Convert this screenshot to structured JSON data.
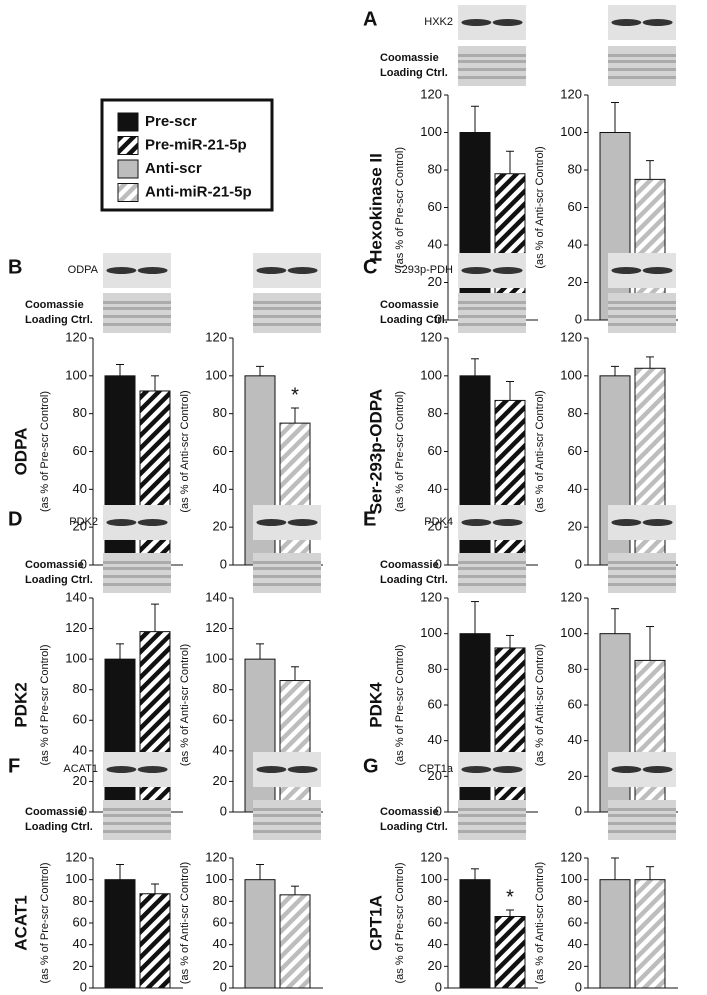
{
  "legend": [
    {
      "name": "Pre-scr",
      "color": "#111111",
      "hatch": false
    },
    {
      "name": "Pre-miR-21-5p",
      "color": "#111111",
      "hatch": true
    },
    {
      "name": "Anti-scr",
      "color": "#bdbdbd",
      "hatch": false
    },
    {
      "name": "Anti-miR-21-5p",
      "color": "#bdbdbd",
      "hatch": true
    }
  ],
  "panels": [
    {
      "letter": "A",
      "title": "Hexokinase II",
      "blot_label": "HXK2",
      "loading_label": [
        "Coomassie",
        "Loading Ctrl."
      ]
    },
    {
      "letter": "B",
      "title": "ODPA",
      "blot_label": "ODPA",
      "loading_label": [
        "Coomassie",
        "Loading Ctrl."
      ]
    },
    {
      "letter": "C",
      "title": "Ser-293p-ODPA",
      "blot_label": "S293p-PDH",
      "loading_label": [
        "Coomassie",
        "Loading Ctrl."
      ]
    },
    {
      "letter": "D",
      "title": "PDK2",
      "blot_label": "PDK2",
      "loading_label": [
        "Coomassie",
        "Loading Ctrl."
      ]
    },
    {
      "letter": "E",
      "title": "PDK4",
      "blot_label": "PDK4",
      "loading_label": [
        "Coomassie",
        "Loading Ctrl."
      ]
    },
    {
      "letter": "F",
      "title": "ACAT1",
      "blot_label": "ACAT1",
      "loading_label": [
        "Coomassie",
        "Loading Ctrl."
      ]
    },
    {
      "letter": "G",
      "title": "CPT1A",
      "blot_label": "CPT1a",
      "loading_label": [
        "Coomassie",
        "Loading Ctrl."
      ]
    }
  ],
  "chart_data": [
    {
      "type": "bar",
      "ylabel": "(as % of Pre-scr Control)",
      "values": [
        100,
        78
      ],
      "errors": [
        14,
        12
      ],
      "colors": [
        "#111111",
        "#111111"
      ],
      "hatch": [
        false,
        true
      ],
      "ylim": [
        0,
        120
      ],
      "yticks": [
        0,
        20,
        40,
        60,
        80,
        100,
        120
      ]
    },
    {
      "type": "bar",
      "ylabel": "(as % of Anti-scr Control)",
      "values": [
        100,
        75
      ],
      "errors": [
        16,
        10
      ],
      "colors": [
        "#bdbdbd",
        "#bdbdbd"
      ],
      "hatch": [
        false,
        true
      ],
      "ylim": [
        0,
        120
      ],
      "yticks": [
        0,
        20,
        40,
        60,
        80,
        100,
        120
      ]
    },
    {
      "type": "bar",
      "ylabel": "(as % of Pre-scr Control)",
      "values": [
        100,
        92
      ],
      "errors": [
        6,
        8
      ],
      "colors": [
        "#111111",
        "#111111"
      ],
      "hatch": [
        false,
        true
      ],
      "ylim": [
        0,
        120
      ],
      "yticks": [
        0,
        20,
        40,
        60,
        80,
        100,
        120
      ]
    },
    {
      "type": "bar",
      "ylabel": "(as % of Anti-scr Control)",
      "values": [
        100,
        75
      ],
      "errors": [
        5,
        8
      ],
      "colors": [
        "#bdbdbd",
        "#bdbdbd"
      ],
      "hatch": [
        false,
        true
      ],
      "ylim": [
        0,
        120
      ],
      "yticks": [
        0,
        20,
        40,
        60,
        80,
        100,
        120
      ],
      "annotations": [
        null,
        "*"
      ]
    },
    {
      "type": "bar",
      "ylabel": "(as % of Pre-scr Control)",
      "values": [
        100,
        87
      ],
      "errors": [
        9,
        10
      ],
      "colors": [
        "#111111",
        "#111111"
      ],
      "hatch": [
        false,
        true
      ],
      "ylim": [
        0,
        120
      ],
      "yticks": [
        0,
        20,
        40,
        60,
        80,
        100,
        120
      ]
    },
    {
      "type": "bar",
      "ylabel": "(as % of Anti-scr Control)",
      "values": [
        100,
        104
      ],
      "errors": [
        5,
        6
      ],
      "colors": [
        "#bdbdbd",
        "#bdbdbd"
      ],
      "hatch": [
        false,
        true
      ],
      "ylim": [
        0,
        120
      ],
      "yticks": [
        0,
        20,
        40,
        60,
        80,
        100,
        120
      ]
    },
    {
      "type": "bar",
      "ylabel": "(as % of Pre-scr Control)",
      "values": [
        100,
        118
      ],
      "errors": [
        10,
        18
      ],
      "colors": [
        "#111111",
        "#111111"
      ],
      "hatch": [
        false,
        true
      ],
      "ylim": [
        0,
        140
      ],
      "yticks": [
        0,
        20,
        40,
        60,
        80,
        100,
        120,
        140
      ]
    },
    {
      "type": "bar",
      "ylabel": "(as % of Anti-scr Control)",
      "values": [
        100,
        86
      ],
      "errors": [
        10,
        9
      ],
      "colors": [
        "#bdbdbd",
        "#bdbdbd"
      ],
      "hatch": [
        false,
        true
      ],
      "ylim": [
        0,
        140
      ],
      "yticks": [
        0,
        20,
        40,
        60,
        80,
        100,
        120,
        140
      ]
    },
    {
      "type": "bar",
      "ylabel": "(as % of Pre-scr Control)",
      "values": [
        100,
        92
      ],
      "errors": [
        18,
        7
      ],
      "colors": [
        "#111111",
        "#111111"
      ],
      "hatch": [
        false,
        true
      ],
      "ylim": [
        0,
        120
      ],
      "yticks": [
        0,
        20,
        40,
        60,
        80,
        100,
        120
      ]
    },
    {
      "type": "bar",
      "ylabel": "(as % of Anti-scr Control)",
      "values": [
        100,
        85
      ],
      "errors": [
        14,
        19
      ],
      "colors": [
        "#bdbdbd",
        "#bdbdbd"
      ],
      "hatch": [
        false,
        true
      ],
      "ylim": [
        0,
        120
      ],
      "yticks": [
        0,
        20,
        40,
        60,
        80,
        100,
        120
      ]
    },
    {
      "type": "bar",
      "ylabel": "(as % of Pre-scr Control)",
      "values": [
        100,
        87
      ],
      "errors": [
        14,
        9
      ],
      "colors": [
        "#111111",
        "#111111"
      ],
      "hatch": [
        false,
        true
      ],
      "ylim": [
        0,
        120
      ],
      "yticks": [
        0,
        20,
        40,
        60,
        80,
        100,
        120
      ]
    },
    {
      "type": "bar",
      "ylabel": "(as % of Anti-scr Control)",
      "values": [
        100,
        86
      ],
      "errors": [
        14,
        8
      ],
      "colors": [
        "#bdbdbd",
        "#bdbdbd"
      ],
      "hatch": [
        false,
        true
      ],
      "ylim": [
        0,
        120
      ],
      "yticks": [
        0,
        20,
        40,
        60,
        80,
        100,
        120
      ]
    },
    {
      "type": "bar",
      "ylabel": "(as % of Pre-scr Control)",
      "values": [
        100,
        66
      ],
      "errors": [
        10,
        6
      ],
      "colors": [
        "#111111",
        "#111111"
      ],
      "hatch": [
        false,
        true
      ],
      "ylim": [
        0,
        120
      ],
      "yticks": [
        0,
        20,
        40,
        60,
        80,
        100,
        120
      ],
      "annotations": [
        null,
        "*"
      ]
    },
    {
      "type": "bar",
      "ylabel": "(as % of Anti-scr Control)",
      "values": [
        100,
        100
      ],
      "errors": [
        20,
        12
      ],
      "colors": [
        "#bdbdbd",
        "#bdbdbd"
      ],
      "hatch": [
        false,
        true
      ],
      "ylim": [
        0,
        120
      ],
      "yticks": [
        0,
        20,
        40,
        60,
        80,
        100,
        120
      ]
    }
  ]
}
